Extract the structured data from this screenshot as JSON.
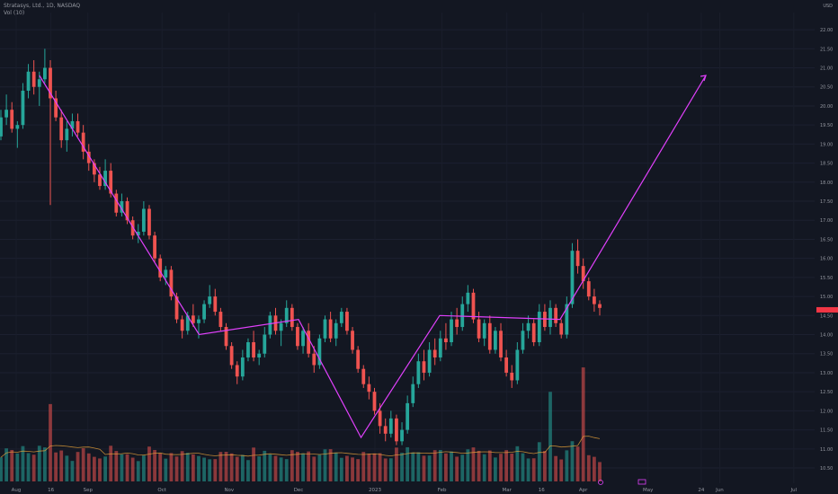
{
  "header": {
    "symbol": "Stratasys, Ltd., 1D, NASDAQ",
    "volume_label": "Vol (10)"
  },
  "currency": {
    "code": "USD",
    "sub": ""
  },
  "colors": {
    "background": "#131722",
    "up": "#26a69a",
    "down": "#ef5350",
    "drawing": "#e040fb",
    "price_badge": "#f23645"
  },
  "chart_data": {
    "type": "candlestick",
    "y_axis": {
      "ticks": [
        10.5,
        11.0,
        11.5,
        12.0,
        12.5,
        13.0,
        13.5,
        14.0,
        14.5,
        15.0,
        15.5,
        16.0,
        16.5,
        17.0,
        17.5,
        18.0,
        18.5,
        19.0,
        19.5,
        20.0,
        20.5,
        21.0,
        21.5,
        22.0
      ],
      "labels": [
        "10.50",
        "11.00",
        "11.50",
        "12.00",
        "12.50",
        "13.00",
        "13.50",
        "14.00",
        "14.50",
        "15.00",
        "15.50",
        "16.00",
        "16.50",
        "17.00",
        "17.50",
        "18.00",
        "18.50",
        "19.00",
        "19.50",
        "20.00",
        "20.50",
        "21.00",
        "21.50",
        "22.00"
      ],
      "range": [
        10.1,
        22.45
      ]
    },
    "x_axis": {
      "labels": [
        "Aug",
        "16",
        "Sep",
        "Oct",
        "Nov",
        "Dec",
        "2023",
        "Feb",
        "Mar",
        "16",
        "Apr",
        "May",
        "24",
        "Jun",
        "Jul"
      ],
      "range": [
        "2022-07-25",
        "2023-07-12"
      ],
      "label_dates": [
        "2022-08-01",
        "2022-08-16",
        "2022-09-01",
        "2022-10-03",
        "2022-11-01",
        "2022-12-01",
        "2023-01-03",
        "2023-02-01",
        "2023-03-01",
        "2023-03-16",
        "2023-04-03",
        "2023-05-01",
        "2023-05-24",
        "2023-06-01",
        "2023-07-03"
      ]
    },
    "candles_ohlc": [
      [
        19.2,
        19.9,
        19.1,
        19.7
      ],
      [
        19.7,
        20.3,
        19.5,
        19.9
      ],
      [
        19.9,
        20.1,
        19.3,
        19.4
      ],
      [
        19.4,
        19.6,
        18.9,
        19.5
      ],
      [
        19.5,
        20.6,
        19.4,
        20.4
      ],
      [
        20.4,
        21.1,
        20.2,
        20.9
      ],
      [
        20.9,
        21.2,
        20.3,
        20.5
      ],
      [
        20.5,
        20.9,
        20.0,
        20.7
      ],
      [
        20.7,
        21.5,
        20.6,
        21.0
      ],
      [
        21.0,
        21.2,
        17.4,
        20.2
      ],
      [
        20.2,
        20.4,
        19.6,
        19.7
      ],
      [
        19.7,
        19.9,
        18.9,
        19.1
      ],
      [
        19.1,
        19.6,
        18.8,
        19.4
      ],
      [
        19.4,
        19.8,
        19.2,
        19.6
      ],
      [
        19.6,
        19.8,
        19.2,
        19.3
      ],
      [
        19.3,
        19.5,
        18.6,
        18.8
      ],
      [
        18.8,
        19.0,
        18.3,
        18.5
      ],
      [
        18.5,
        18.6,
        18.0,
        18.2
      ],
      [
        18.2,
        18.4,
        17.8,
        17.9
      ],
      [
        17.9,
        18.6,
        17.8,
        18.3
      ],
      [
        18.3,
        18.5,
        17.6,
        17.7
      ],
      [
        17.7,
        17.8,
        17.1,
        17.2
      ],
      [
        17.2,
        17.7,
        17.1,
        17.5
      ],
      [
        17.5,
        17.6,
        16.9,
        17.0
      ],
      [
        17.0,
        17.1,
        16.5,
        16.6
      ],
      [
        16.6,
        16.9,
        16.4,
        16.7
      ],
      [
        16.7,
        17.5,
        16.6,
        17.3
      ],
      [
        17.3,
        17.4,
        16.5,
        16.6
      ],
      [
        16.6,
        16.7,
        15.9,
        16.0
      ],
      [
        16.0,
        16.1,
        15.4,
        15.5
      ],
      [
        15.5,
        15.8,
        15.3,
        15.7
      ],
      [
        15.7,
        15.8,
        14.9,
        15.0
      ],
      [
        15.0,
        15.1,
        14.3,
        14.4
      ],
      [
        14.4,
        14.5,
        13.9,
        14.1
      ],
      [
        14.1,
        14.6,
        14.0,
        14.5
      ],
      [
        14.5,
        14.8,
        14.2,
        14.3
      ],
      [
        14.3,
        14.5,
        13.9,
        14.4
      ],
      [
        14.4,
        14.9,
        14.3,
        14.8
      ],
      [
        14.8,
        15.3,
        14.7,
        15.0
      ],
      [
        15.0,
        15.2,
        14.5,
        14.6
      ],
      [
        14.6,
        14.7,
        14.1,
        14.2
      ],
      [
        14.2,
        14.3,
        13.6,
        13.7
      ],
      [
        13.7,
        13.8,
        13.1,
        13.2
      ],
      [
        13.2,
        13.3,
        12.7,
        12.9
      ],
      [
        12.9,
        13.6,
        12.8,
        13.4
      ],
      [
        13.4,
        13.9,
        13.3,
        13.8
      ],
      [
        13.8,
        14.1,
        13.3,
        13.4
      ],
      [
        13.4,
        13.6,
        13.2,
        13.5
      ],
      [
        13.5,
        14.2,
        13.4,
        14.0
      ],
      [
        14.0,
        14.6,
        13.9,
        14.5
      ],
      [
        14.5,
        14.7,
        14.0,
        14.1
      ],
      [
        14.1,
        14.4,
        13.7,
        14.3
      ],
      [
        14.3,
        14.9,
        14.2,
        14.7
      ],
      [
        14.7,
        14.8,
        14.1,
        14.2
      ],
      [
        14.2,
        14.3,
        13.6,
        13.7
      ],
      [
        13.7,
        14.2,
        13.5,
        14.1
      ],
      [
        14.1,
        14.3,
        13.4,
        13.5
      ],
      [
        13.5,
        13.7,
        13.0,
        13.2
      ],
      [
        13.2,
        14.0,
        13.1,
        13.9
      ],
      [
        13.9,
        14.5,
        13.8,
        14.4
      ],
      [
        14.4,
        14.6,
        13.8,
        13.9
      ],
      [
        13.9,
        14.4,
        13.7,
        14.3
      ],
      [
        14.3,
        14.7,
        14.2,
        14.6
      ],
      [
        14.6,
        14.7,
        14.0,
        14.1
      ],
      [
        14.1,
        14.2,
        13.5,
        13.6
      ],
      [
        13.6,
        13.7,
        13.0,
        13.1
      ],
      [
        13.1,
        13.2,
        12.6,
        12.7
      ],
      [
        12.7,
        12.9,
        12.3,
        12.5
      ],
      [
        12.5,
        12.6,
        11.9,
        12.0
      ],
      [
        12.0,
        12.2,
        11.4,
        11.6
      ],
      [
        11.6,
        11.8,
        11.2,
        11.4
      ],
      [
        11.4,
        12.0,
        11.3,
        11.8
      ],
      [
        11.8,
        11.9,
        11.1,
        11.2
      ],
      [
        11.2,
        11.7,
        11.1,
        11.5
      ],
      [
        11.5,
        12.4,
        11.4,
        12.2
      ],
      [
        12.2,
        12.9,
        12.1,
        12.7
      ],
      [
        12.7,
        13.5,
        12.6,
        13.3
      ],
      [
        13.3,
        13.6,
        12.8,
        13.0
      ],
      [
        13.0,
        13.8,
        12.9,
        13.6
      ],
      [
        13.6,
        13.9,
        13.2,
        13.4
      ],
      [
        13.4,
        14.1,
        13.3,
        13.9
      ],
      [
        13.9,
        14.3,
        13.6,
        13.8
      ],
      [
        13.8,
        14.6,
        13.7,
        14.4
      ],
      [
        14.4,
        14.7,
        14.0,
        14.2
      ],
      [
        14.2,
        15.0,
        14.1,
        14.8
      ],
      [
        14.8,
        15.3,
        14.6,
        15.1
      ],
      [
        15.1,
        15.2,
        14.3,
        14.4
      ],
      [
        14.4,
        14.6,
        13.8,
        13.9
      ],
      [
        13.9,
        14.4,
        13.7,
        14.3
      ],
      [
        14.3,
        14.5,
        13.5,
        13.6
      ],
      [
        13.6,
        14.2,
        13.5,
        14.1
      ],
      [
        14.1,
        14.3,
        13.3,
        13.4
      ],
      [
        13.4,
        13.6,
        12.9,
        13.0
      ],
      [
        13.0,
        13.2,
        12.6,
        12.8
      ],
      [
        12.8,
        13.8,
        12.7,
        13.6
      ],
      [
        13.6,
        14.3,
        13.5,
        14.1
      ],
      [
        14.1,
        14.5,
        13.9,
        14.3
      ],
      [
        14.3,
        14.4,
        13.7,
        13.8
      ],
      [
        13.8,
        14.8,
        13.7,
        14.6
      ],
      [
        14.6,
        14.8,
        14.1,
        14.2
      ],
      [
        14.2,
        14.9,
        14.0,
        14.7
      ],
      [
        14.7,
        14.8,
        14.2,
        14.3
      ],
      [
        14.3,
        14.4,
        13.9,
        14.0
      ],
      [
        14.0,
        15.0,
        13.9,
        14.8
      ],
      [
        14.8,
        16.4,
        14.7,
        16.2
      ],
      [
        16.2,
        16.5,
        15.6,
        15.8
      ],
      [
        15.8,
        16.0,
        15.2,
        15.4
      ],
      [
        15.4,
        15.5,
        14.9,
        15.0
      ],
      [
        15.0,
        15.2,
        14.6,
        14.8
      ],
      [
        14.8,
        14.9,
        14.5,
        14.7
      ]
    ],
    "volume_ma_period": 10,
    "trend_line": {
      "dates": [
        "2022-08-11",
        "2022-10-19",
        "2022-12-01",
        "2022-12-28",
        "2023-01-31",
        "2023-03-24",
        "2023-05-26"
      ],
      "prices": [
        20.8,
        14.0,
        14.4,
        11.3,
        14.5,
        14.4,
        20.8
      ]
    },
    "last_price": 14.65
  }
}
